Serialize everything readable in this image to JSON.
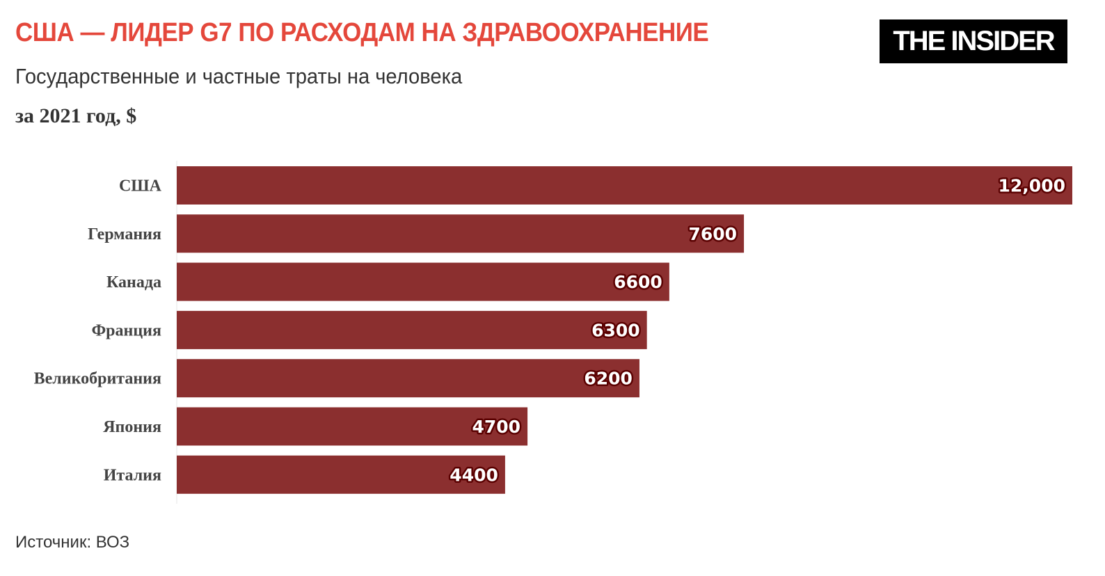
{
  "header": {
    "title": "США — ЛИДЕР G7 ПО РАСХОДАМ НА ЗДРАВООХРАНЕНИЕ",
    "subtitle": "Государственные и частные траты на человека",
    "subtitle2": "за 2021 год, $",
    "logo_text": "THE INSIDER"
  },
  "footer": {
    "source": "Источник: ВОЗ"
  },
  "chart_data": {
    "type": "bar",
    "orientation": "horizontal",
    "categories": [
      "США",
      "Германия",
      "Канада",
      "Франция",
      "Великобритания",
      "Япония",
      "Италия"
    ],
    "values": [
      12000,
      7600,
      6600,
      6300,
      6200,
      4700,
      4400
    ],
    "value_labels": [
      "12,000",
      "7600",
      "6600",
      "6300",
      "6200",
      "4700",
      "4400"
    ],
    "xlim": [
      0,
      12000
    ],
    "grid": false,
    "bar_color": "#8b2f2f",
    "title_color": "#e4473b"
  }
}
